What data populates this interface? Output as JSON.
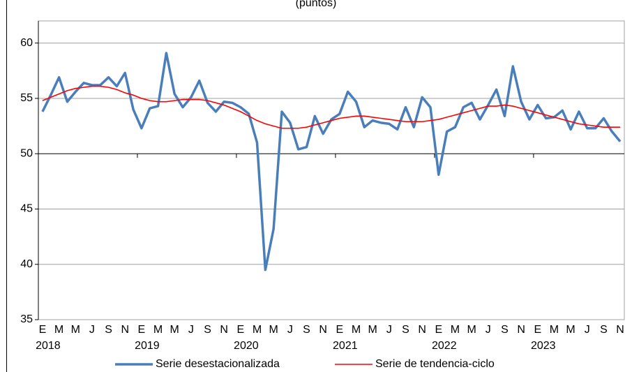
{
  "chart_data": {
    "type": "line",
    "subtitle": "(puntos)",
    "categories": [
      "E",
      null,
      "M",
      null,
      "M",
      null,
      "J",
      null,
      "S",
      null,
      "N",
      null,
      "E",
      null,
      "M",
      null,
      "M",
      null,
      "J",
      null,
      "S",
      null,
      "N",
      null,
      "E",
      null,
      "M",
      null,
      "M",
      null,
      "J",
      null,
      "S",
      null,
      "N",
      null,
      "E",
      null,
      "M",
      null,
      "M",
      null,
      "J",
      null,
      "S",
      null,
      "N",
      null,
      "E",
      null,
      "M",
      null,
      "M",
      null,
      "J",
      null,
      "S",
      null,
      "N",
      null,
      "E",
      null,
      "M",
      null,
      "M",
      null,
      "J",
      null,
      "S",
      null,
      "N"
    ],
    "x_groups": [
      "2018",
      "2019",
      "2020",
      "2021",
      "2022",
      "2023"
    ],
    "series": [
      {
        "name": "Serie desestacionalizada",
        "color": "#4a7ebb",
        "values": [
          53.8,
          55.3,
          56.9,
          54.7,
          55.6,
          56.4,
          56.2,
          56.2,
          56.9,
          56.1,
          57.3,
          54.0,
          52.3,
          54.1,
          54.3,
          59.1,
          55.4,
          54.2,
          55.1,
          56.6,
          54.6,
          53.8,
          54.7,
          54.6,
          54.2,
          53.6,
          51.0,
          39.5,
          43.2,
          53.8,
          52.8,
          50.4,
          50.6,
          53.4,
          51.8,
          53.1,
          53.6,
          55.6,
          54.7,
          52.4,
          53.0,
          52.8,
          52.7,
          52.2,
          54.2,
          52.4,
          55.1,
          54.2,
          48.1,
          52.0,
          52.4,
          54.2,
          54.6,
          53.1,
          54.4,
          55.8,
          53.4,
          57.9,
          54.7,
          53.1,
          54.4,
          53.2,
          53.3,
          53.9,
          52.2,
          53.8,
          52.3,
          52.3,
          53.2,
          52.0,
          51.1
        ]
      },
      {
        "name": "Serie de tendencia-ciclo",
        "color": "#ff0000",
        "values": [
          54.8,
          55.1,
          55.4,
          55.7,
          55.9,
          56.0,
          56.1,
          56.1,
          56.0,
          55.8,
          55.5,
          55.3,
          55.0,
          54.8,
          54.7,
          54.7,
          54.8,
          54.9,
          54.9,
          54.9,
          54.8,
          54.6,
          54.4,
          54.1,
          53.8,
          53.4,
          53.0,
          52.7,
          52.5,
          52.3,
          52.3,
          52.3,
          52.4,
          52.6,
          52.8,
          53.0,
          53.2,
          53.3,
          53.4,
          53.4,
          53.3,
          53.2,
          53.1,
          53.0,
          52.9,
          52.9,
          52.9,
          53.0,
          53.1,
          53.3,
          53.5,
          53.7,
          53.9,
          54.1,
          54.3,
          54.3,
          54.4,
          54.3,
          54.1,
          53.9,
          53.7,
          53.5,
          53.3,
          53.1,
          52.9,
          52.7,
          52.6,
          52.5,
          52.4,
          52.4,
          52.4
        ]
      }
    ],
    "ylim": [
      35,
      62
    ],
    "yticks": [
      35,
      40,
      45,
      50,
      55,
      60
    ],
    "grid": true,
    "x_axis_at": 50,
    "legend": "bottom"
  }
}
